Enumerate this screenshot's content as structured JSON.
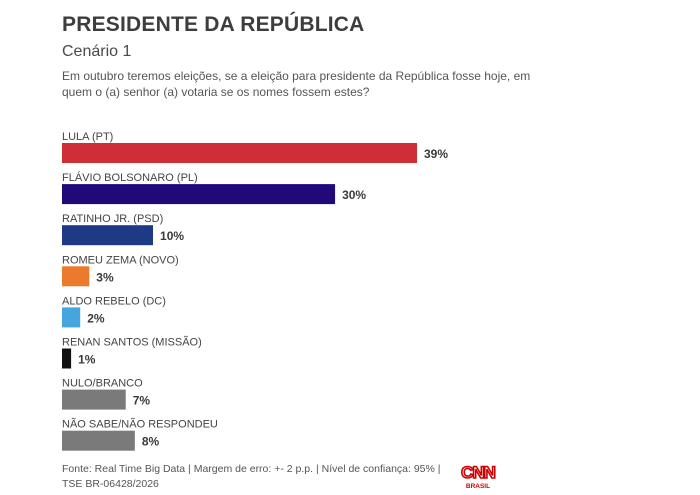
{
  "header": {
    "title": "PRESIDENTE DA REPÚBLICA",
    "subtitle": "Cenário 1",
    "question": "Em outubro teremos eleições, se a eleição para presidente da República fosse hoje, em quem o (a) senhor (a) votaria se os nomes fossem estes?"
  },
  "chart_data": {
    "type": "bar",
    "orientation": "horizontal",
    "title": "PRESIDENTE DA REPÚBLICA",
    "xlabel": "",
    "ylabel": "",
    "xlim": [
      0,
      39
    ],
    "grid": false,
    "value_suffix": "%",
    "categories": [
      "LULA (PT)",
      "FLÁVIO BOLSONARO (PL)",
      "RATINHO JR. (PSD)",
      "ROMEU ZEMA (NOVO)",
      "ALDO REBELO (DC)",
      "RENAN SANTOS (MISSÃO)",
      "NULO/BRANCO",
      "NÃO SABE/NÃO RESPONDEU"
    ],
    "values": [
      39,
      30,
      10,
      3,
      2,
      1,
      7,
      8
    ],
    "colors": [
      "#cf2e37",
      "#22097a",
      "#1e3a84",
      "#ec7a2c",
      "#45a6dd",
      "#111111",
      "#7a7a7a",
      "#7a7a7a"
    ]
  },
  "footer": {
    "source": "Fonte: Real Time Big Data | Margem de erro: +- 2 p.p. | Nível de confiança: 95% | TSE BR-06428/2026"
  },
  "logo": {
    "brand": "CNN",
    "sub": "BRASIL",
    "color": "#cc0000"
  }
}
